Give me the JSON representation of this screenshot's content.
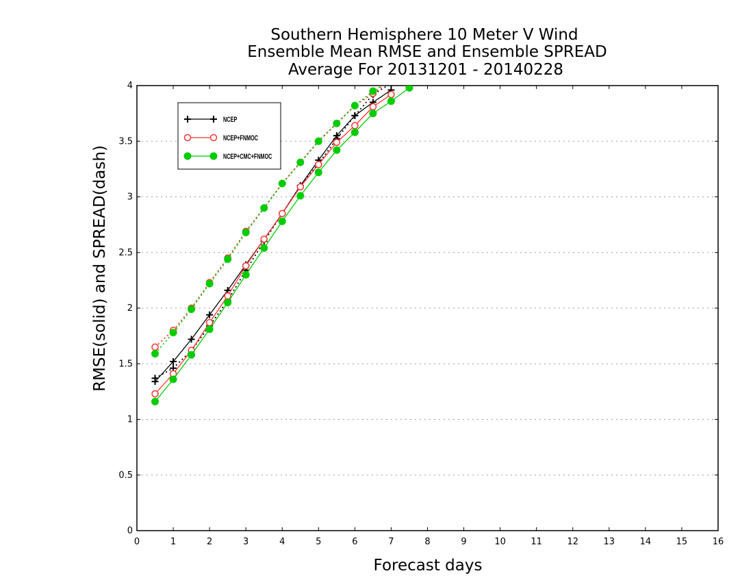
{
  "chart_data": {
    "type": "line",
    "title": [
      "Southern Hemisphere 10 Meter V Wind",
      "Ensemble Mean RMSE and Ensemble SPREAD",
      "Average For 20131201 - 20140228"
    ],
    "xlabel": "Forecast days",
    "ylabel": "RMSE(solid) and SPREAD(dash)",
    "xlim": [
      0,
      16
    ],
    "ylim": [
      0,
      4
    ],
    "xticks": [
      0,
      1,
      2,
      3,
      4,
      5,
      6,
      7,
      8,
      9,
      10,
      11,
      12,
      13,
      14,
      15,
      16
    ],
    "yticks": [
      0,
      0.5,
      1,
      1.5,
      2,
      2.5,
      3,
      3.5,
      4
    ],
    "ytick_labels": [
      "0",
      "0.5",
      "1",
      "1.5",
      "2",
      "2.5",
      "3",
      "3.5",
      "4"
    ],
    "grid": "horizontal dotted",
    "legend_position": "top-left",
    "series": [
      {
        "name": "NCEP",
        "color": "#000000",
        "marker": "plus",
        "rmse": {
          "x": [
            0.5,
            1,
            1.5,
            2,
            2.5,
            3,
            3.5,
            4,
            4.5,
            5,
            5.5,
            6,
            6.5,
            7
          ],
          "y": [
            1.34,
            1.52,
            1.72,
            1.94,
            2.16,
            2.39,
            2.62,
            2.85,
            3.1,
            3.33,
            3.55,
            3.73,
            3.85,
            3.96
          ]
        },
        "spread": {
          "x": [
            0.5,
            1,
            1.5,
            2,
            2.5,
            3,
            3.5,
            4,
            4.5,
            5,
            5.5,
            6,
            6.5,
            7
          ],
          "y": [
            1.37,
            1.46,
            1.62,
            1.84,
            2.07,
            2.34,
            2.6,
            2.85,
            3.1,
            3.3,
            3.52,
            3.73,
            3.92,
            4.02
          ]
        }
      },
      {
        "name": "NCEP+FNMOC",
        "color": "#ff3333",
        "marker": "open-circle",
        "rmse": {
          "x": [
            0.5,
            1,
            1.5,
            2,
            2.5,
            3,
            3.5,
            4,
            4.5,
            5,
            5.5,
            6,
            6.5,
            7
          ],
          "y": [
            1.23,
            1.41,
            1.62,
            1.87,
            2.11,
            2.38,
            2.62,
            2.85,
            3.09,
            3.29,
            3.49,
            3.64,
            3.81,
            3.92
          ]
        },
        "spread": {
          "x": [
            0.5,
            1,
            1.5,
            2,
            2.5,
            3,
            3.5,
            4,
            4.5,
            5,
            5.5,
            6,
            6.5,
            7
          ],
          "y": [
            1.65,
            1.8,
            2.0,
            2.23,
            2.45,
            2.69,
            2.9,
            3.12,
            3.31,
            3.5,
            3.66,
            3.82,
            3.93,
            4.05
          ]
        }
      },
      {
        "name": "NCEP+CMC+FNMOC",
        "color": "#00cc00",
        "marker": "filled-circle",
        "rmse": {
          "x": [
            0.5,
            1,
            1.5,
            2,
            2.5,
            3,
            3.5,
            4,
            4.5,
            5,
            5.5,
            6,
            6.5,
            7,
            7.5
          ],
          "y": [
            1.16,
            1.36,
            1.58,
            1.81,
            2.05,
            2.3,
            2.54,
            2.78,
            3.01,
            3.22,
            3.42,
            3.58,
            3.75,
            3.86,
            3.98
          ]
        },
        "spread": {
          "x": [
            0.5,
            1,
            1.5,
            2,
            2.5,
            3,
            3.5,
            4,
            4.5,
            5,
            5.5,
            6,
            6.5,
            7
          ],
          "y": [
            1.59,
            1.78,
            1.99,
            2.22,
            2.44,
            2.68,
            2.9,
            3.12,
            3.31,
            3.5,
            3.66,
            3.82,
            3.95,
            4.05
          ]
        }
      }
    ]
  }
}
